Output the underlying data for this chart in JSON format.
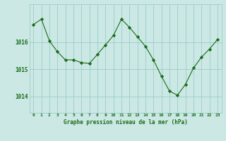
{
  "x": [
    0,
    1,
    2,
    3,
    4,
    5,
    6,
    7,
    8,
    9,
    10,
    11,
    12,
    13,
    14,
    15,
    16,
    17,
    18,
    19,
    20,
    21,
    22,
    23
  ],
  "y": [
    1016.65,
    1016.85,
    1016.05,
    1015.65,
    1015.35,
    1015.35,
    1015.25,
    1015.22,
    1015.55,
    1015.9,
    1016.25,
    1016.85,
    1016.55,
    1016.2,
    1015.85,
    1015.35,
    1014.75,
    1014.2,
    1014.05,
    1014.45,
    1015.05,
    1015.45,
    1015.75,
    1016.1
  ],
  "line_color": "#1a6b1a",
  "marker": "D",
  "marker_size": 2.2,
  "bg_color": "#cce8e4",
  "plot_bg_color": "#cce8e4",
  "grid_color": "#99cccc",
  "xlabel": "Graphe pression niveau de la mer (hPa)",
  "xlabel_color": "#1a6b1a",
  "tick_color": "#1a6b1a",
  "yticks": [
    1014,
    1015,
    1016
  ],
  "ylim": [
    1013.4,
    1017.4
  ],
  "xlim": [
    -0.5,
    23.5
  ],
  "xtick_labels": [
    "0",
    "1",
    "2",
    "3",
    "4",
    "5",
    "6",
    "7",
    "8",
    "9",
    "10",
    "11",
    "12",
    "13",
    "14",
    "15",
    "16",
    "17",
    "18",
    "19",
    "20",
    "21",
    "22",
    "23"
  ]
}
